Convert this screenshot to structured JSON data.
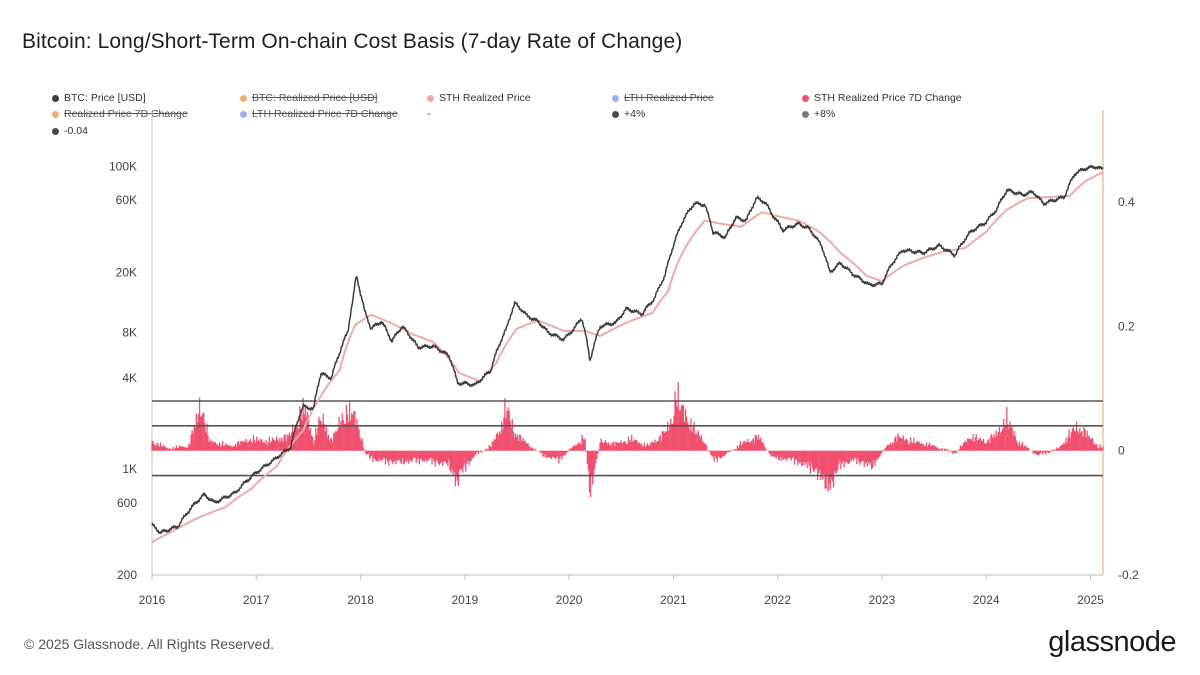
{
  "title": "Bitcoin: Long/Short-Term On-chain Cost Basis (7-day Rate of Change)",
  "footer": {
    "copyright": "© 2025 Glassnode. All Rights Reserved.",
    "brand": "glassnode"
  },
  "legend": [
    {
      "label": "BTC: Price [USD]",
      "color": "#3d3d3d",
      "enabled": true
    },
    {
      "label": "BTC: Realized Price [USD]",
      "color": "#f2a65a",
      "enabled": false
    },
    {
      "label": "STH Realized Price",
      "color": "#f2a9a9",
      "enabled": true
    },
    {
      "label": "LTH Realized Price",
      "color": "#8fa8ef",
      "enabled": false
    },
    {
      "label": "STH Realized Price 7D Change",
      "color": "#f0506e",
      "enabled": true
    },
    {
      "label": "Realized Price 7D Change",
      "color": "#f2a65a",
      "enabled": false
    },
    {
      "label": "LTH Realized Price 7D Change",
      "color": "#8fa8ef",
      "enabled": false
    },
    {
      "label": "-",
      "color": "",
      "enabled": true
    },
    {
      "label": "+4%",
      "color": "#4a4a4a",
      "enabled": true
    },
    {
      "label": "+8%",
      "color": "#7a7a7a",
      "enabled": true
    },
    {
      "label": "-0.04",
      "color": "#4a4a4a",
      "enabled": true
    }
  ],
  "chart_data": {
    "type": "line",
    "title": "Bitcoin: Long/Short-Term On-chain Cost Basis (7-day Rate of Change)",
    "x_ticks": [
      "2016",
      "2017",
      "2018",
      "2019",
      "2020",
      "2021",
      "2022",
      "2023",
      "2024",
      "2025"
    ],
    "x_range": [
      2016.0,
      2025.12
    ],
    "y_left": {
      "scale": "log",
      "range": [
        200,
        150000
      ],
      "ticks": [
        200,
        600,
        1000,
        4000,
        8000,
        20000,
        60000,
        100000
      ],
      "tick_labels": [
        "200",
        "600",
        "1K",
        "4K",
        "8K",
        "20K",
        "60K",
        "100K"
      ]
    },
    "y_right": {
      "scale": "linear",
      "range": [
        -0.2,
        0.5
      ],
      "ticks": [
        -0.2,
        0,
        0.2,
        0.4
      ],
      "tick_labels": [
        "-0.2",
        "0",
        "0.2",
        "0.4"
      ]
    },
    "threshold_lines": [
      {
        "label": "+8%",
        "value": 0.08
      },
      {
        "label": "+4%",
        "value": 0.04
      },
      {
        "label": "-0.04",
        "value": -0.04
      }
    ],
    "series": [
      {
        "name": "BTC: Price [USD]",
        "color": "#3d3d3d",
        "points": [
          [
            2016.0,
            430
          ],
          [
            2016.08,
            380
          ],
          [
            2016.25,
            420
          ],
          [
            2016.4,
            580
          ],
          [
            2016.5,
            680
          ],
          [
            2016.6,
            600
          ],
          [
            2016.8,
            700
          ],
          [
            2017.0,
            950
          ],
          [
            2017.17,
            1150
          ],
          [
            2017.33,
            1400
          ],
          [
            2017.45,
            2600
          ],
          [
            2017.55,
            2500
          ],
          [
            2017.62,
            4300
          ],
          [
            2017.72,
            4000
          ],
          [
            2017.8,
            5900
          ],
          [
            2017.88,
            8200
          ],
          [
            2017.93,
            13500
          ],
          [
            2017.96,
            19000
          ],
          [
            2018.0,
            14500
          ],
          [
            2018.04,
            11000
          ],
          [
            2018.1,
            8500
          ],
          [
            2018.2,
            9500
          ],
          [
            2018.3,
            7000
          ],
          [
            2018.4,
            8800
          ],
          [
            2018.55,
            6400
          ],
          [
            2018.7,
            6500
          ],
          [
            2018.85,
            5600
          ],
          [
            2018.93,
            3700
          ],
          [
            2019.0,
            3700
          ],
          [
            2019.1,
            3600
          ],
          [
            2019.25,
            4500
          ],
          [
            2019.4,
            8500
          ],
          [
            2019.48,
            12500
          ],
          [
            2019.6,
            10300
          ],
          [
            2019.7,
            9500
          ],
          [
            2019.8,
            8000
          ],
          [
            2019.95,
            7200
          ],
          [
            2020.05,
            8500
          ],
          [
            2020.12,
            10000
          ],
          [
            2020.2,
            5200
          ],
          [
            2020.3,
            8800
          ],
          [
            2020.45,
            9300
          ],
          [
            2020.55,
            11500
          ],
          [
            2020.7,
            10600
          ],
          [
            2020.82,
            13500
          ],
          [
            2020.92,
            19000
          ],
          [
            2021.0,
            30000
          ],
          [
            2021.1,
            45000
          ],
          [
            2021.2,
            57000
          ],
          [
            2021.3,
            56000
          ],
          [
            2021.38,
            37000
          ],
          [
            2021.5,
            34000
          ],
          [
            2021.6,
            46000
          ],
          [
            2021.7,
            44000
          ],
          [
            2021.8,
            62000
          ],
          [
            2021.88,
            58000
          ],
          [
            2021.95,
            48000
          ],
          [
            2022.05,
            38000
          ],
          [
            2022.2,
            42000
          ],
          [
            2022.3,
            39000
          ],
          [
            2022.42,
            30000
          ],
          [
            2022.5,
            20000
          ],
          [
            2022.6,
            23000
          ],
          [
            2022.72,
            19500
          ],
          [
            2022.88,
            16500
          ],
          [
            2023.0,
            16800
          ],
          [
            2023.1,
            23000
          ],
          [
            2023.2,
            28000
          ],
          [
            2023.4,
            27000
          ],
          [
            2023.55,
            30000
          ],
          [
            2023.7,
            26000
          ],
          [
            2023.85,
            37000
          ],
          [
            2024.0,
            43000
          ],
          [
            2024.1,
            52000
          ],
          [
            2024.2,
            70000
          ],
          [
            2024.35,
            65000
          ],
          [
            2024.45,
            68000
          ],
          [
            2024.55,
            57000
          ],
          [
            2024.65,
            60000
          ],
          [
            2024.75,
            63000
          ],
          [
            2024.85,
            90000
          ],
          [
            2024.95,
            97000
          ],
          [
            2025.05,
            100000
          ],
          [
            2025.12,
            96000
          ]
        ]
      },
      {
        "name": "STH Realized Price",
        "color": "#f2a9a9",
        "points": [
          [
            2016.0,
            330
          ],
          [
            2016.2,
            390
          ],
          [
            2016.45,
            480
          ],
          [
            2016.7,
            560
          ],
          [
            2016.95,
            740
          ],
          [
            2017.2,
            1050
          ],
          [
            2017.45,
            1800
          ],
          [
            2017.6,
            2900
          ],
          [
            2017.8,
            4500
          ],
          [
            2017.95,
            9000
          ],
          [
            2018.1,
            10500
          ],
          [
            2018.3,
            9200
          ],
          [
            2018.5,
            7800
          ],
          [
            2018.7,
            6900
          ],
          [
            2018.95,
            4300
          ],
          [
            2019.15,
            3800
          ],
          [
            2019.3,
            5000
          ],
          [
            2019.5,
            8500
          ],
          [
            2019.7,
            9600
          ],
          [
            2019.95,
            8200
          ],
          [
            2020.15,
            8200
          ],
          [
            2020.3,
            7600
          ],
          [
            2020.55,
            9300
          ],
          [
            2020.8,
            10800
          ],
          [
            2020.95,
            15000
          ],
          [
            2021.1,
            28000
          ],
          [
            2021.3,
            44000
          ],
          [
            2021.45,
            42000
          ],
          [
            2021.65,
            40000
          ],
          [
            2021.85,
            50000
          ],
          [
            2022.0,
            47000
          ],
          [
            2022.2,
            44000
          ],
          [
            2022.4,
            37000
          ],
          [
            2022.6,
            27000
          ],
          [
            2022.85,
            19000
          ],
          [
            2023.0,
            17500
          ],
          [
            2023.2,
            22000
          ],
          [
            2023.4,
            25000
          ],
          [
            2023.6,
            27500
          ],
          [
            2023.8,
            29000
          ],
          [
            2024.0,
            37000
          ],
          [
            2024.2,
            52000
          ],
          [
            2024.4,
            62000
          ],
          [
            2024.6,
            63000
          ],
          [
            2024.8,
            64000
          ],
          [
            2024.95,
            80000
          ],
          [
            2025.12,
            92000
          ]
        ]
      },
      {
        "name": "STH Realized Price 7D Change",
        "color": "#f0506e",
        "points": [
          [
            2016.0,
            0.02
          ],
          [
            2016.15,
            0.005
          ],
          [
            2016.35,
            0.01
          ],
          [
            2016.47,
            0.1
          ],
          [
            2016.55,
            0.02
          ],
          [
            2016.75,
            0.01
          ],
          [
            2016.95,
            0.025
          ],
          [
            2017.1,
            0.02
          ],
          [
            2017.3,
            0.03
          ],
          [
            2017.4,
            0.06
          ],
          [
            2017.46,
            0.1
          ],
          [
            2017.55,
            0.02
          ],
          [
            2017.62,
            0.075
          ],
          [
            2017.72,
            0.02
          ],
          [
            2017.82,
            0.07
          ],
          [
            2017.92,
            0.085
          ],
          [
            2017.97,
            0.06
          ],
          [
            2018.05,
            -0.01
          ],
          [
            2018.15,
            -0.02
          ],
          [
            2018.35,
            -0.025
          ],
          [
            2018.6,
            -0.02
          ],
          [
            2018.85,
            -0.03
          ],
          [
            2018.92,
            -0.07
          ],
          [
            2018.98,
            -0.04
          ],
          [
            2019.1,
            -0.01
          ],
          [
            2019.25,
            0.01
          ],
          [
            2019.35,
            0.05
          ],
          [
            2019.4,
            0.1
          ],
          [
            2019.47,
            0.04
          ],
          [
            2019.6,
            0.015
          ],
          [
            2019.75,
            -0.01
          ],
          [
            2019.9,
            -0.02
          ],
          [
            2020.05,
            0.01
          ],
          [
            2020.15,
            0.03
          ],
          [
            2020.2,
            -0.09
          ],
          [
            2020.3,
            0.02
          ],
          [
            2020.45,
            0.015
          ],
          [
            2020.6,
            0.025
          ],
          [
            2020.75,
            0.01
          ],
          [
            2020.88,
            0.03
          ],
          [
            2020.98,
            0.06
          ],
          [
            2021.03,
            0.12
          ],
          [
            2021.15,
            0.06
          ],
          [
            2021.3,
            0.02
          ],
          [
            2021.38,
            -0.02
          ],
          [
            2021.5,
            -0.01
          ],
          [
            2021.65,
            0.015
          ],
          [
            2021.82,
            0.03
          ],
          [
            2021.95,
            -0.015
          ],
          [
            2022.15,
            -0.02
          ],
          [
            2022.35,
            -0.04
          ],
          [
            2022.5,
            -0.08
          ],
          [
            2022.6,
            -0.03
          ],
          [
            2022.75,
            -0.02
          ],
          [
            2022.9,
            -0.035
          ],
          [
            2023.05,
            0.01
          ],
          [
            2023.15,
            0.03
          ],
          [
            2023.3,
            0.02
          ],
          [
            2023.5,
            0.01
          ],
          [
            2023.7,
            -0.005
          ],
          [
            2023.85,
            0.03
          ],
          [
            2024.0,
            0.02
          ],
          [
            2024.12,
            0.04
          ],
          [
            2024.2,
            0.07
          ],
          [
            2024.3,
            0.02
          ],
          [
            2024.5,
            -0.01
          ],
          [
            2024.7,
            0.005
          ],
          [
            2024.85,
            0.05
          ],
          [
            2024.95,
            0.04
          ],
          [
            2025.05,
            0.015
          ],
          [
            2025.12,
            0.005
          ]
        ]
      }
    ]
  }
}
